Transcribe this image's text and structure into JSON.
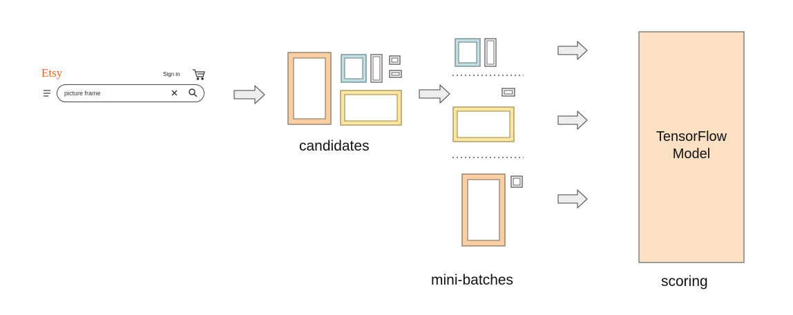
{
  "etsy_ui": {
    "logo": "Etsy",
    "signin_label": "Sign in",
    "search_value": "picture frame",
    "icons": [
      "menu-icon",
      "cart-icon",
      "close-icon",
      "search-icon"
    ]
  },
  "labels": {
    "candidates": "candidates",
    "mini_batches": "mini-batches",
    "scoring": "scoring",
    "model_line1": "TensorFlow",
    "model_line2": "Model"
  },
  "colors": {
    "orange_fill": "#f9cfa6",
    "orange_stroke": "#e0a570",
    "blue_fill": "#c5dde3",
    "blue_stroke": "#6e8e95",
    "yellow_fill": "#fbe5a4",
    "yellow_stroke": "#d6b452",
    "model_fill": "#fbe0c4",
    "arrow_fill": "#eeeeee",
    "arrow_stroke": "#666666",
    "brand": "#e8642c"
  }
}
